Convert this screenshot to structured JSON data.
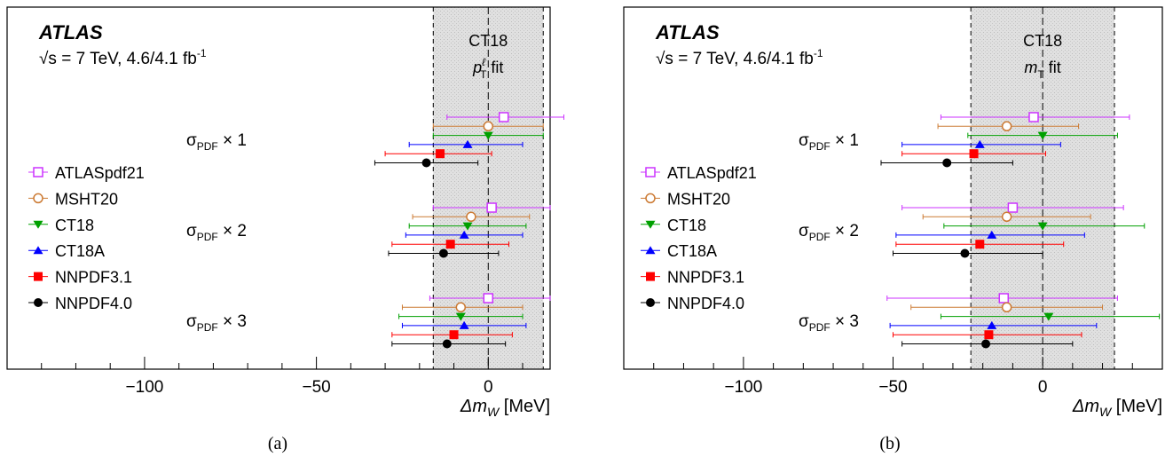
{
  "chart_data": [
    {
      "type": "scatter",
      "panel": "(a)",
      "experiment": "ATLAS",
      "energy_text": "√s = 7 TeV, 4.6/4.1 fb",
      "energy_sup": "-1",
      "band_label": "CT18",
      "fit_main": "p",
      "fit_sub": "T",
      "fit_sup": "ℓ",
      "fit_suffix": " fit",
      "band": {
        "center": 0,
        "half_width": 16,
        "color": "#d9d9d9"
      },
      "xlabel": "Δm",
      "xlabel_sub": "W",
      "xlabel_unit": " [MeV]",
      "xlim": [
        -140,
        18
      ],
      "xticks": [
        -100,
        -50,
        0
      ],
      "xtick_labels": [
        "−100",
        "−50",
        "0"
      ],
      "groups": [
        {
          "label": "σ",
          "sub": "PDF",
          "mult": "× 1"
        },
        {
          "label": "σ",
          "sub": "PDF",
          "mult": "× 2"
        },
        {
          "label": "σ",
          "sub": "PDF",
          "mult": "× 3"
        }
      ],
      "series": [
        {
          "name": "ATLASpdf21",
          "color": "#cc33ff",
          "marker": "square-open",
          "points": [
            {
              "group": 0,
              "x": 4.5,
              "lo": -12,
              "hi": 22
            },
            {
              "group": 1,
              "x": 1,
              "lo": -16,
              "hi": 18
            },
            {
              "group": 2,
              "x": 0,
              "lo": -17,
              "hi": 18
            }
          ]
        },
        {
          "name": "MSHT20",
          "color": "#cc7a33",
          "marker": "circle-open",
          "points": [
            {
              "group": 0,
              "x": 0,
              "lo": -16,
              "hi": 16
            },
            {
              "group": 1,
              "x": -5,
              "lo": -22,
              "hi": 12
            },
            {
              "group": 2,
              "x": -8,
              "lo": -25,
              "hi": 10
            }
          ]
        },
        {
          "name": "CT18",
          "color": "#00a000",
          "marker": "triangle-down",
          "points": [
            {
              "group": 0,
              "x": 0,
              "lo": -16,
              "hi": 16
            },
            {
              "group": 1,
              "x": -6,
              "lo": -23,
              "hi": 11
            },
            {
              "group": 2,
              "x": -8,
              "lo": -26,
              "hi": 10
            }
          ]
        },
        {
          "name": "CT18A",
          "color": "#0000ff",
          "marker": "triangle-up",
          "points": [
            {
              "group": 0,
              "x": -6,
              "lo": -23,
              "hi": 10
            },
            {
              "group": 1,
              "x": -7,
              "lo": -24,
              "hi": 10
            },
            {
              "group": 2,
              "x": -7,
              "lo": -25,
              "hi": 11
            }
          ]
        },
        {
          "name": "NNPDF3.1",
          "color": "#ff0000",
          "marker": "square",
          "points": [
            {
              "group": 0,
              "x": -14,
              "lo": -30,
              "hi": 1
            },
            {
              "group": 1,
              "x": -11,
              "lo": -28,
              "hi": 6
            },
            {
              "group": 2,
              "x": -10,
              "lo": -28,
              "hi": 7
            }
          ]
        },
        {
          "name": "NNPDF4.0",
          "color": "#000000",
          "marker": "circle",
          "points": [
            {
              "group": 0,
              "x": -18,
              "lo": -33,
              "hi": -3
            },
            {
              "group": 1,
              "x": -13,
              "lo": -29,
              "hi": 3
            },
            {
              "group": 2,
              "x": -12,
              "lo": -28,
              "hi": 5
            }
          ]
        }
      ]
    },
    {
      "type": "scatter",
      "panel": "(b)",
      "experiment": "ATLAS",
      "energy_text": "√s = 7 TeV, 4.6/4.1 fb",
      "energy_sup": "-1",
      "band_label": "CT18",
      "fit_main": "m",
      "fit_sub": "T",
      "fit_sup": "",
      "fit_suffix": " fit",
      "band": {
        "center": 0,
        "half_width": 24,
        "color": "#d9d9d9"
      },
      "xlabel": "Δm",
      "xlabel_sub": "W",
      "xlabel_unit": " [MeV]",
      "xlim": [
        -140,
        40
      ],
      "xticks": [
        -100,
        -50,
        0
      ],
      "xtick_labels": [
        "−100",
        "−50",
        "0"
      ],
      "groups": [
        {
          "label": "σ",
          "sub": "PDF",
          "mult": "× 1"
        },
        {
          "label": "σ",
          "sub": "PDF",
          "mult": "× 2"
        },
        {
          "label": "σ",
          "sub": "PDF",
          "mult": "× 3"
        }
      ],
      "series": [
        {
          "name": "ATLASpdf21",
          "color": "#cc33ff",
          "marker": "square-open",
          "points": [
            {
              "group": 0,
              "x": -3,
              "lo": -34,
              "hi": 29
            },
            {
              "group": 1,
              "x": -10,
              "lo": -47,
              "hi": 27
            },
            {
              "group": 2,
              "x": -13,
              "lo": -52,
              "hi": 25
            }
          ]
        },
        {
          "name": "MSHT20",
          "color": "#cc7a33",
          "marker": "circle-open",
          "points": [
            {
              "group": 0,
              "x": -12,
              "lo": -35,
              "hi": 12
            },
            {
              "group": 1,
              "x": -12,
              "lo": -40,
              "hi": 16
            },
            {
              "group": 2,
              "x": -12,
              "lo": -44,
              "hi": 20
            }
          ]
        },
        {
          "name": "CT18",
          "color": "#00a000",
          "marker": "triangle-down",
          "points": [
            {
              "group": 0,
              "x": 0,
              "lo": -25,
              "hi": 25
            },
            {
              "group": 1,
              "x": 0,
              "lo": -33,
              "hi": 34
            },
            {
              "group": 2,
              "x": 2,
              "lo": -34,
              "hi": 39
            }
          ]
        },
        {
          "name": "CT18A",
          "color": "#0000ff",
          "marker": "triangle-up",
          "points": [
            {
              "group": 0,
              "x": -21,
              "lo": -47,
              "hi": 6
            },
            {
              "group": 1,
              "x": -17,
              "lo": -49,
              "hi": 14
            },
            {
              "group": 2,
              "x": -17,
              "lo": -51,
              "hi": 18
            }
          ]
        },
        {
          "name": "NNPDF3.1",
          "color": "#ff0000",
          "marker": "square",
          "points": [
            {
              "group": 0,
              "x": -23,
              "lo": -47,
              "hi": 1
            },
            {
              "group": 1,
              "x": -21,
              "lo": -49,
              "hi": 7
            },
            {
              "group": 2,
              "x": -18,
              "lo": -50,
              "hi": 13
            }
          ]
        },
        {
          "name": "NNPDF4.0",
          "color": "#000000",
          "marker": "circle",
          "points": [
            {
              "group": 0,
              "x": -32,
              "lo": -54,
              "hi": -10
            },
            {
              "group": 1,
              "x": -26,
              "lo": -50,
              "hi": 0
            },
            {
              "group": 2,
              "x": -19,
              "lo": -47,
              "hi": 10
            }
          ]
        }
      ]
    }
  ]
}
